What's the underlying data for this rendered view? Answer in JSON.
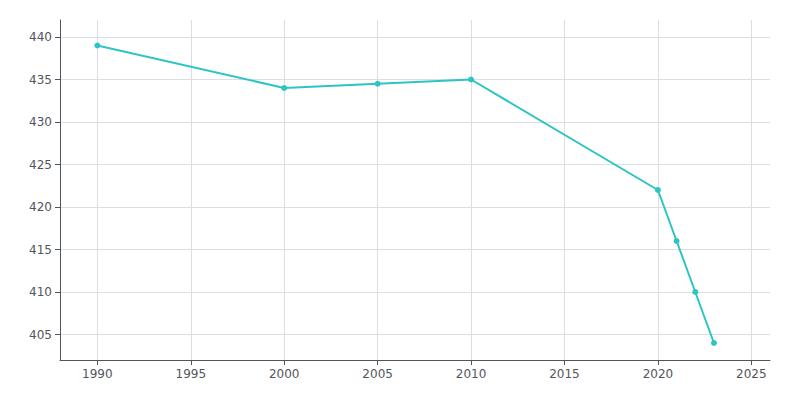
{
  "chart_data": {
    "type": "line",
    "x": [
      1990,
      2000,
      2005,
      2010,
      2020,
      2021,
      2022,
      2023
    ],
    "values": [
      439,
      434,
      434.5,
      435,
      422,
      416,
      410,
      404
    ],
    "color": "#2ec4c4",
    "marker": "circle",
    "xlim": [
      1988,
      2026
    ],
    "xticks": [
      1990,
      1995,
      2000,
      2005,
      2010,
      2015,
      2020,
      2025
    ],
    "ylim": [
      402,
      442
    ],
    "yticks": [
      405,
      410,
      415,
      420,
      425,
      430,
      435,
      440
    ],
    "grid": true
  }
}
